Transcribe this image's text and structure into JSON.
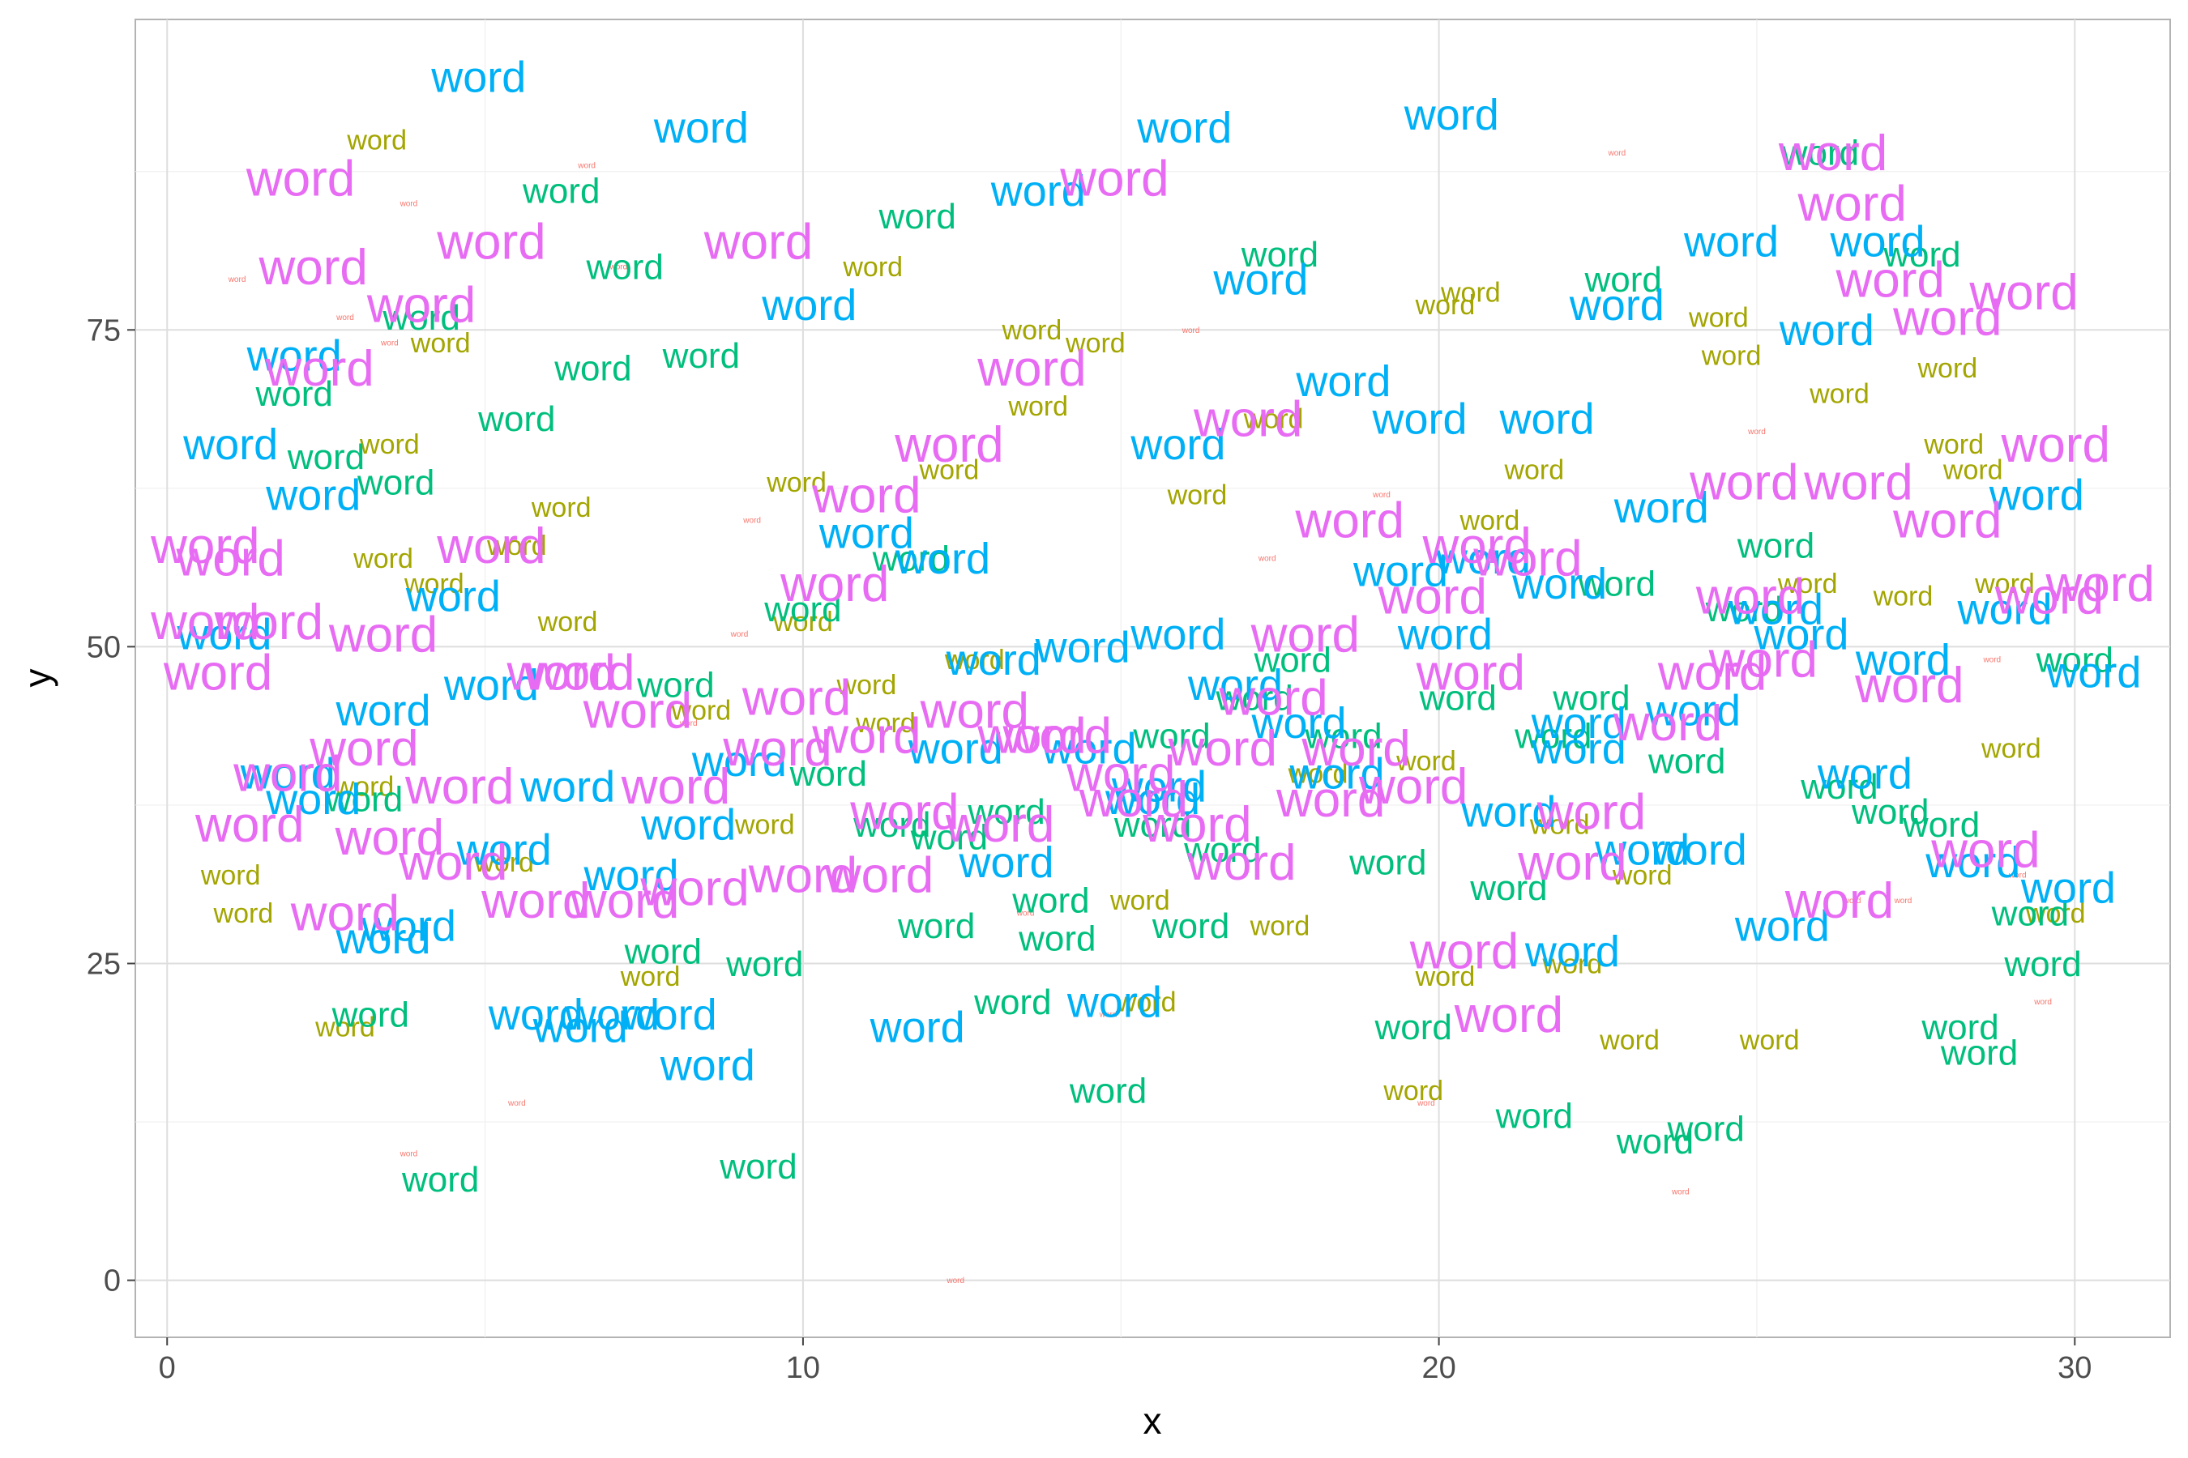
{
  "chart_data": {
    "type": "scatter",
    "title": "",
    "xlabel": "x",
    "ylabel": "y",
    "xlim": [
      -0.5,
      31.5
    ],
    "ylim": [
      -4.5,
      99.5
    ],
    "x_ticks": [
      0,
      10,
      20,
      30
    ],
    "x_tick_labels": [
      "0",
      "10",
      "20",
      "30"
    ],
    "y_ticks": [
      0,
      25,
      50,
      75
    ],
    "y_tick_labels": [
      "0",
      "25",
      "50",
      "75"
    ],
    "grid": true,
    "legend": "none",
    "point_label": "word",
    "group_colors": [
      "#F8766D",
      "#A3A500",
      "#00BF7D",
      "#00B0F6",
      "#E76BF3"
    ],
    "series": [
      {
        "name": "",
        "color": "#F8766D",
        "size": "tiny",
        "x": [
          1.1,
          3.8,
          2.8,
          9.0,
          7.1,
          16.1,
          22.8,
          13.5,
          19.8,
          3.8,
          12.4,
          26.5,
          25.0,
          28.7,
          23.8,
          5.5,
          9.2,
          27.3,
          29.5,
          14.8,
          6.6,
          19.1,
          3.5,
          29.1,
          17.3,
          8.2
        ],
        "y": [
          79,
          85,
          76,
          51,
          80,
          75,
          89,
          29,
          14,
          10,
          0,
          30,
          67,
          49,
          7,
          14,
          60,
          30,
          22,
          21,
          88,
          62,
          74,
          32,
          57,
          44
        ]
      },
      {
        "name": "",
        "color": "#A3A500",
        "size": "small",
        "x": [
          3.3,
          20.1,
          24.6,
          20.5,
          28.0,
          13.6,
          2.8,
          5.3,
          1.0,
          1.2,
          3.1,
          3.4,
          4.2,
          6.3,
          15.3,
          15.4,
          17.5,
          21.9,
          23.2,
          23.0,
          29.0,
          29.7,
          25.8,
          28.4,
          13.7,
          24.4,
          14.6,
          12.7,
          11.3,
          9.4,
          10.0,
          19.8,
          22.1,
          7.6,
          5.5,
          8.4,
          6.2,
          16.2,
          17.4,
          18.1,
          20.8,
          21.5,
          26.3,
          27.3,
          28.1,
          28.9,
          9.9,
          11.1,
          12.3,
          19.6,
          20.1,
          25.2,
          11.0,
          4.3,
          3.5
        ],
        "y": [
          90,
          77,
          73,
          78,
          72,
          75,
          20,
          33,
          32,
          29,
          39,
          57,
          55,
          52,
          30,
          22,
          28,
          36,
          32,
          19,
          42,
          29,
          55,
          64,
          69,
          76,
          74,
          49,
          44,
          36,
          52,
          41,
          25,
          24,
          58,
          45,
          61,
          62,
          68,
          40,
          60,
          64,
          70,
          54,
          66,
          55,
          63,
          80,
          64,
          15,
          24,
          19,
          47,
          74,
          66
        ]
      },
      {
        "name": "",
        "color": "#00BF7D",
        "size": "medium",
        "x": [
          6.2,
          7.2,
          11.8,
          17.5,
          22.9,
          27.6,
          26.0,
          4.0,
          2.0,
          9.3,
          4.3,
          3.2,
          13.3,
          19.6,
          21.5,
          14.8,
          24.2,
          23.4,
          28.5,
          29.5,
          28.2,
          30.0,
          29.3,
          12.1,
          9.4,
          14.0,
          3.1,
          7.8,
          21.1,
          21.8,
          18.5,
          10.4,
          12.3,
          15.5,
          16.1,
          11.4,
          8.0,
          20.3,
          24.8,
          27.1,
          26.3,
          13.9,
          13.2,
          16.6,
          22.8,
          25.3,
          8.4,
          5.5,
          17.7,
          6.7,
          23.9,
          10.0,
          11.7,
          2.5,
          3.6,
          19.2,
          22.4,
          27.9,
          15.8,
          17.1
        ],
        "y": [
          86,
          80,
          84,
          81,
          79,
          81,
          89,
          76,
          70,
          9,
          8,
          21,
          22,
          20,
          13,
          15,
          12,
          11,
          18,
          25,
          20,
          49,
          29,
          28,
          25,
          27,
          38,
          26,
          31,
          43,
          43,
          40,
          35,
          36,
          28,
          36,
          47,
          46,
          53,
          37,
          39,
          30,
          37,
          34,
          55,
          58,
          73,
          68,
          49,
          72,
          41,
          53,
          57,
          65,
          63,
          33,
          46,
          36,
          43,
          46
        ]
      },
      {
        "name": "",
        "color": "#00B0F6",
        "size": "large",
        "x": [
          4.9,
          8.4,
          16.0,
          20.2,
          13.7,
          24.6,
          26.9,
          17.2,
          22.8,
          10.1,
          15.9,
          19.7,
          21.7,
          18.5,
          26.1,
          29.4,
          23.5,
          2.0,
          1.0,
          0.9,
          2.3,
          3.4,
          4.5,
          5.1,
          5.8,
          8.5,
          7.9,
          12.4,
          13.0,
          14.5,
          15.9,
          17.8,
          20.1,
          21.1,
          22.2,
          25.3,
          26.7,
          28.4,
          29.9,
          30.3,
          27.3,
          24.0,
          25.7,
          28.9,
          24.1,
          22.1,
          18.4,
          14.9,
          13.2,
          11.8,
          6.5,
          3.4,
          3.8,
          7.0,
          6.3,
          5.3,
          7.3,
          8.2,
          9.0,
          11.0,
          21.9,
          14.4,
          15.6,
          16.8,
          19.4,
          20.7,
          23.2,
          25.4,
          2.3,
          1.9,
          12.2,
          15.5,
          22.2
        ],
        "y": [
          95,
          91,
          91,
          92,
          86,
          82,
          82,
          79,
          77,
          77,
          66,
          68,
          68,
          71,
          75,
          62,
          61,
          73,
          66,
          51,
          62,
          45,
          54,
          47,
          21,
          17,
          21,
          42,
          49,
          42,
          51,
          44,
          51,
          37,
          42,
          53,
          40,
          33,
          31,
          48,
          49,
          45,
          51,
          53,
          34,
          26,
          40,
          22,
          33,
          20,
          20,
          27,
          28,
          21,
          39,
          34,
          32,
          36,
          41,
          59,
          55,
          50,
          39,
          47,
          56,
          57,
          34,
          28,
          38,
          40,
          57,
          38,
          44
        ]
      },
      {
        "name": "",
        "color": "#E76BF3",
        "size": "xlarge",
        "x": [
          2.1,
          2.3,
          5.1,
          9.3,
          14.9,
          26.2,
          26.5,
          27.1,
          28.0,
          29.2,
          13.6,
          12.3,
          11.0,
          10.5,
          10.0,
          7.2,
          3.1,
          4.5,
          5.8,
          2.8,
          1.9,
          0.6,
          1.0,
          0.6,
          0.8,
          1.3,
          3.5,
          4.6,
          3.4,
          6.2,
          7.4,
          8.0,
          9.9,
          11.0,
          11.6,
          12.7,
          14.0,
          15.2,
          16.6,
          17.4,
          18.3,
          19.6,
          20.4,
          21.1,
          22.4,
          23.6,
          24.3,
          25.1,
          26.3,
          27.4,
          28.6,
          29.6,
          30.4,
          29.7,
          28.0,
          26.6,
          24.9,
          21.4,
          20.5,
          19.9,
          18.7,
          17.9,
          16.2,
          15.0,
          13.1,
          11.2,
          9.6,
          8.3,
          6.5,
          5.1,
          4.0,
          2.4,
          1.6,
          22.1,
          24.8,
          13.6,
          16.9,
          17.0,
          18.6,
          20.6
        ],
        "y": [
          87,
          80,
          82,
          82,
          87,
          89,
          85,
          79,
          76,
          78,
          72,
          66,
          62,
          55,
          32,
          30,
          42,
          33,
          30,
          29,
          40,
          58,
          57,
          52,
          48,
          36,
          35,
          39,
          51,
          48,
          45,
          39,
          46,
          43,
          37,
          45,
          43,
          38,
          42,
          46,
          38,
          39,
          26,
          21,
          37,
          44,
          48,
          49,
          30,
          47,
          34,
          54,
          55,
          66,
          60,
          63,
          54,
          57,
          48,
          54,
          42,
          51,
          36,
          40,
          36,
          32,
          42,
          31,
          48,
          58,
          77,
          72,
          52,
          33,
          63,
          43,
          33,
          68,
          60,
          58
        ]
      }
    ]
  }
}
